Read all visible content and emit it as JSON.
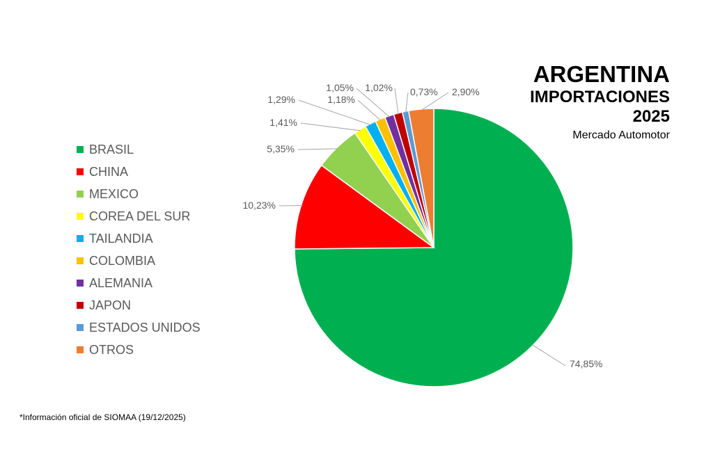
{
  "title": "ARGENTINA",
  "subtitle": "IMPORTACIONES",
  "year": "2025",
  "caption": "Mercado Automotor",
  "footnote": "*Información oficial de SIOMAA (19/12/2025)",
  "chart_data": {
    "type": "pie",
    "legend_position": "left",
    "start_angle": "top, clockwise",
    "slices": [
      {
        "name": "BRASIL",
        "value": 74.85,
        "label": "74,85%",
        "color": "#00B050"
      },
      {
        "name": "CHINA",
        "value": 10.23,
        "label": "10,23%",
        "color": "#FF0000"
      },
      {
        "name": "MEXICO",
        "value": 5.35,
        "label": "5,35%",
        "color": "#92D050"
      },
      {
        "name": "COREA DEL SUR",
        "value": 1.41,
        "label": "1,41%",
        "color": "#FFFF00"
      },
      {
        "name": "TAILANDIA",
        "value": 1.29,
        "label": "1,29%",
        "color": "#00B0F0"
      },
      {
        "name": "COLOMBIA",
        "value": 1.18,
        "label": "1,18%",
        "color": "#FFC000"
      },
      {
        "name": "ALEMANIA",
        "value": 1.05,
        "label": "1,05%",
        "color": "#7030A0"
      },
      {
        "name": "JAPON",
        "value": 1.02,
        "label": "1,02%",
        "color": "#C00000"
      },
      {
        "name": "ESTADOS UNIDOS",
        "value": 0.73,
        "label": "0,73%",
        "color": "#5B9BD5"
      },
      {
        "name": "OTROS",
        "value": 2.9,
        "label": "2,90%",
        "color": "#ED7D31"
      }
    ]
  }
}
